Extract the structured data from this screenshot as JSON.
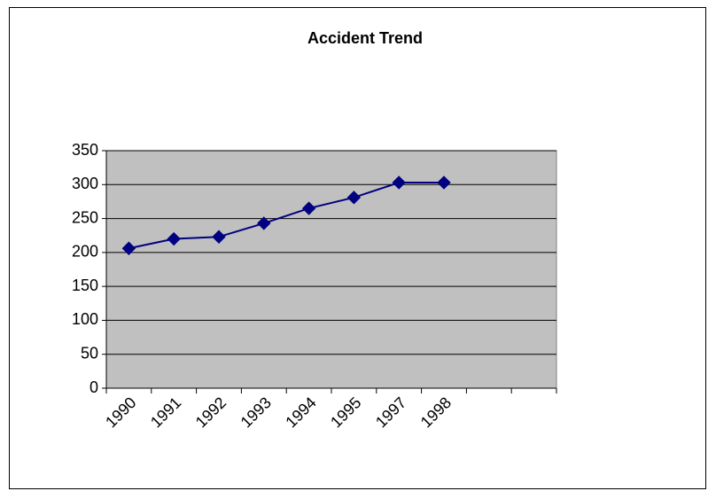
{
  "chart_data": {
    "type": "line",
    "title": "Accident Trend",
    "categories": [
      "1990",
      "1991",
      "1992",
      "1993",
      "1994",
      "1995",
      "1997",
      "1998",
      null,
      null
    ],
    "values": [
      206,
      220,
      223,
      243,
      265,
      281,
      303,
      303,
      null,
      null
    ],
    "color": "#000080",
    "ylim": [
      0,
      350
    ],
    "yticks": [
      0,
      50,
      100,
      150,
      200,
      250,
      300,
      350
    ],
    "grid": true
  }
}
